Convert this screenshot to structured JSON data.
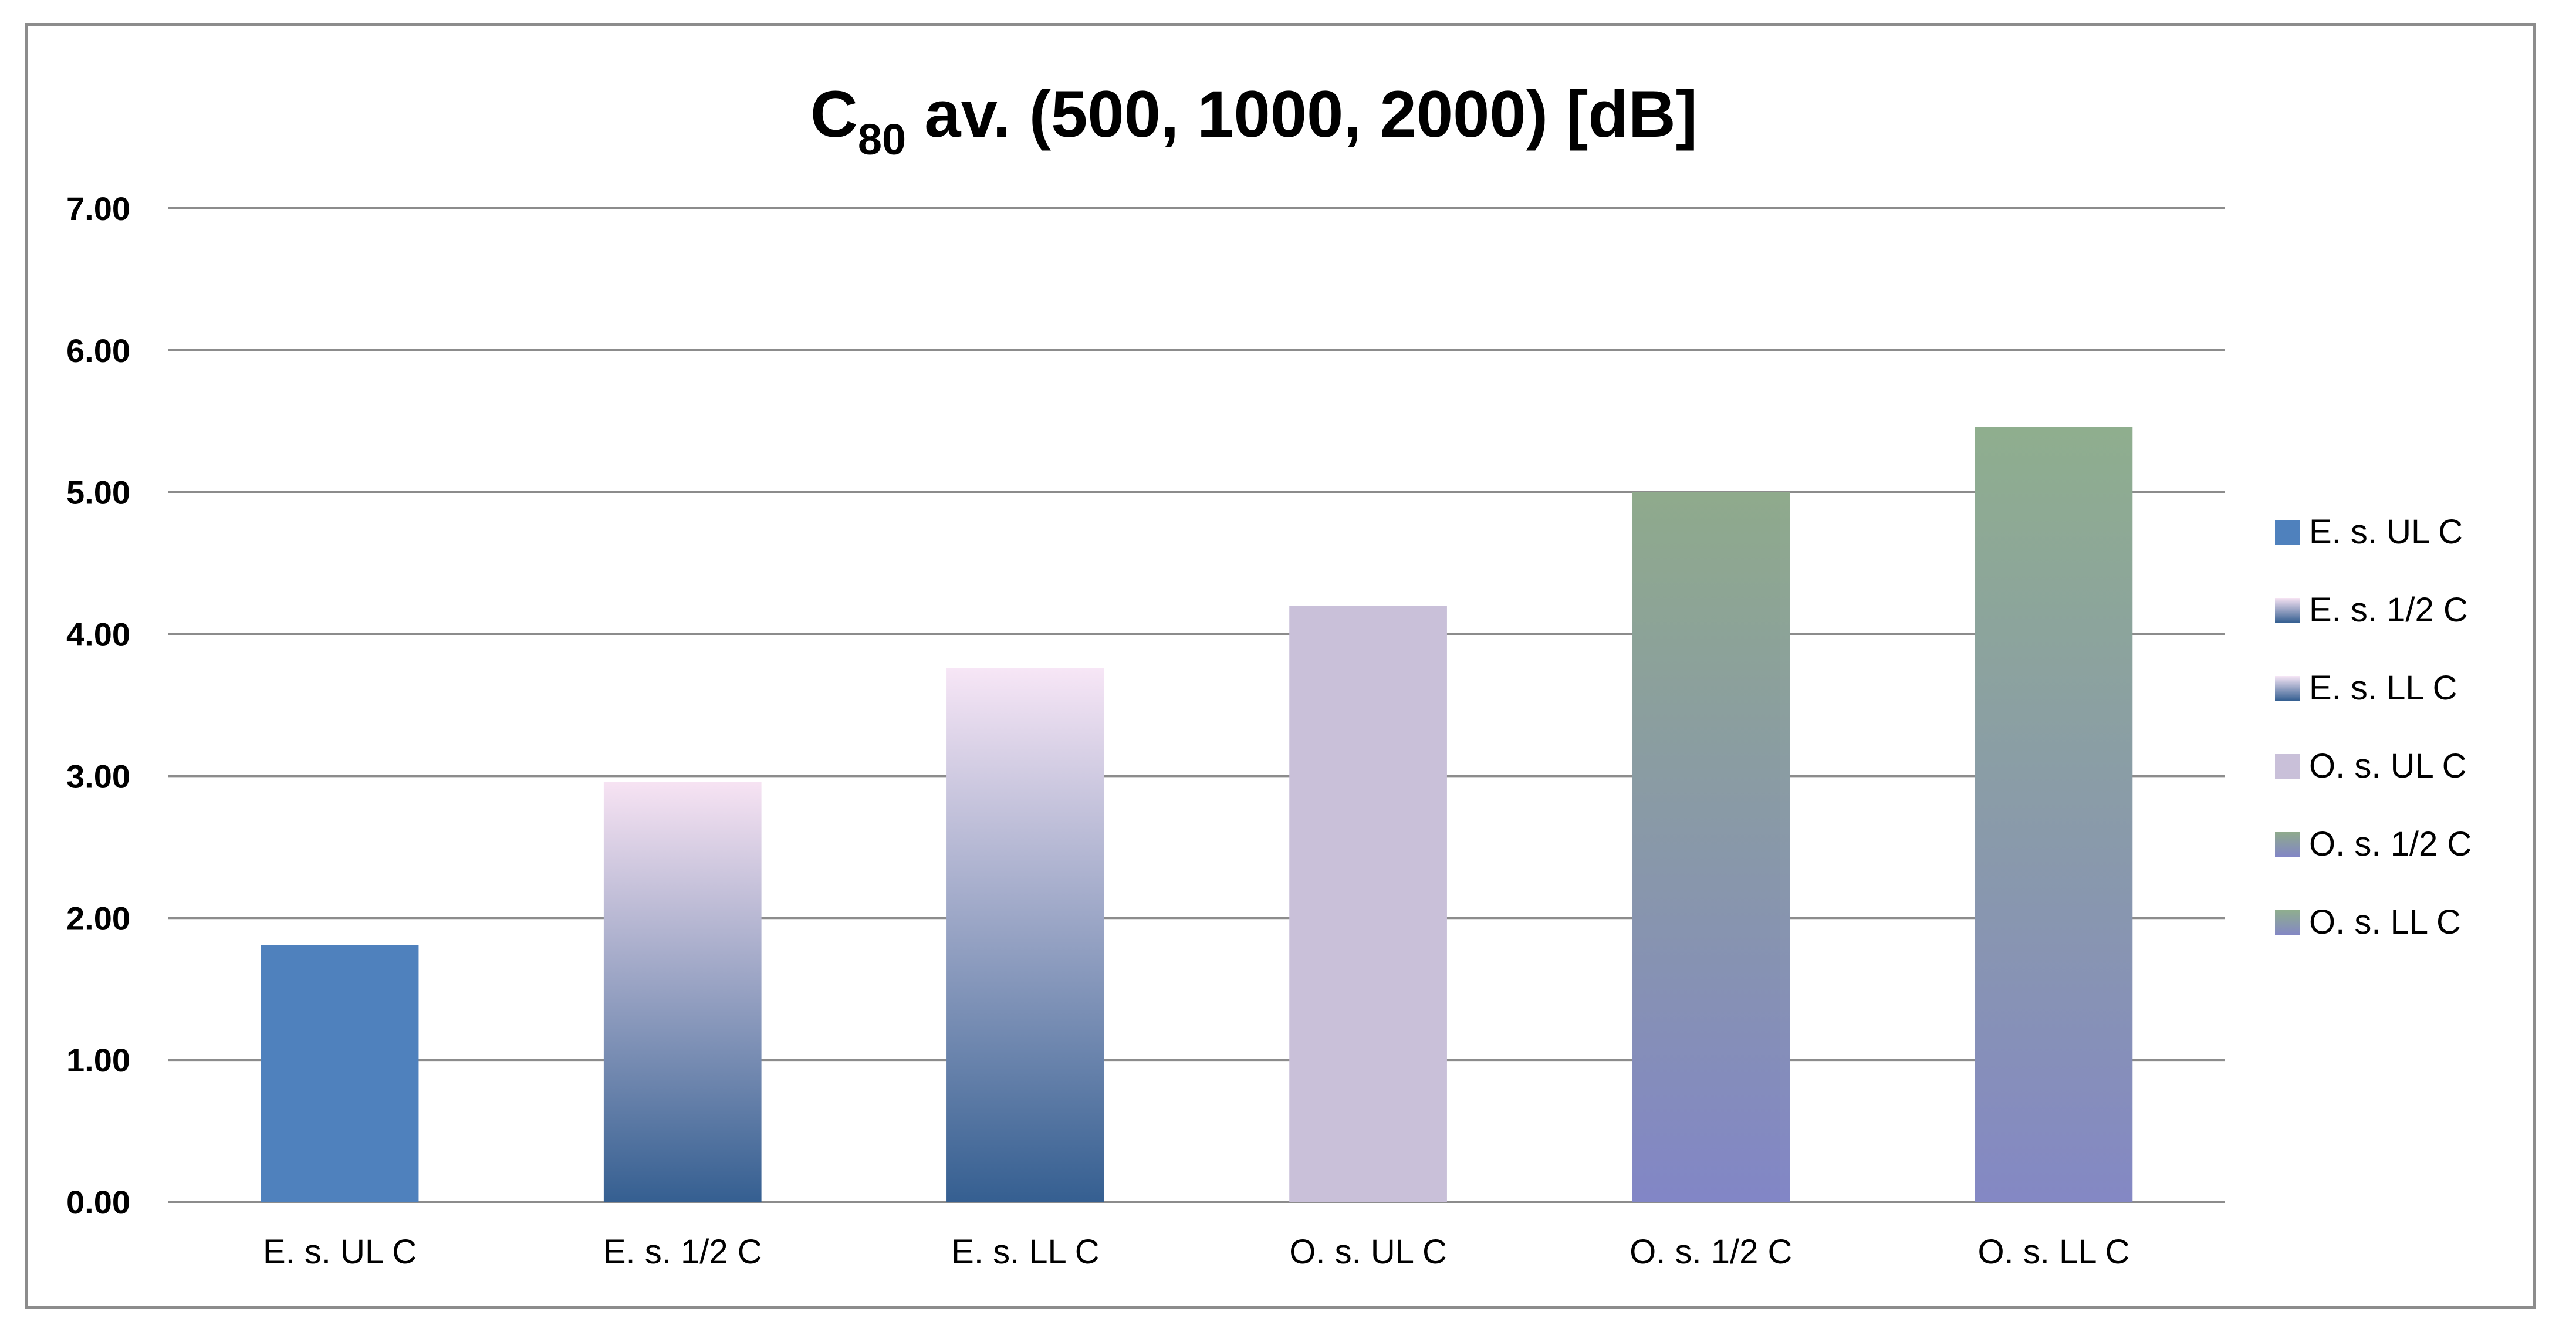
{
  "chart_data": {
    "type": "bar",
    "title": {
      "main": "C",
      "subscript": "80",
      "rest": " av. (500, 1000, 2000) [dB]"
    },
    "xlabel": "",
    "ylabel": "",
    "ylim": [
      0,
      7
    ],
    "yticks": [
      "0.00",
      "1.00",
      "2.00",
      "3.00",
      "4.00",
      "5.00",
      "6.00",
      "7.00"
    ],
    "grid": true,
    "legend_position": "right",
    "categories": [
      "E. s. UL C",
      "E. s. 1/2 C",
      "E. s. LL C",
      "O. s. UL C",
      "O. s. 1/2 C",
      "O. s. LL C"
    ],
    "values": [
      1.81,
      2.96,
      3.76,
      4.2,
      5.0,
      5.46
    ],
    "series": [
      {
        "name": "E. s. UL C",
        "value": 1.81,
        "colors": [
          "#4f81bd",
          "#4f81bd"
        ]
      },
      {
        "name": "E. s. 1/2 C",
        "value": 2.96,
        "colors": [
          "#355f91",
          "#f7e3f3"
        ]
      },
      {
        "name": "E. s. LL C",
        "value": 3.76,
        "colors": [
          "#355f91",
          "#f7e6f6"
        ]
      },
      {
        "name": "O. s. UL C",
        "value": 4.2,
        "colors": [
          "#c9c0d9",
          "#c9c0d9"
        ]
      },
      {
        "name": "O. s. 1/2 C",
        "value": 5.0,
        "colors": [
          "#8286c6",
          "#8faa8c"
        ]
      },
      {
        "name": "O. s. LL C",
        "value": 5.46,
        "colors": [
          "#8488c4",
          "#8fae8e"
        ]
      }
    ]
  }
}
